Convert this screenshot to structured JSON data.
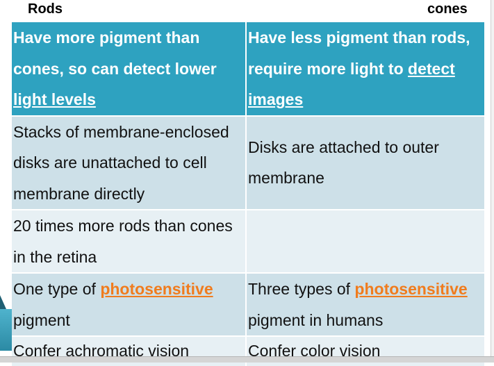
{
  "headers": {
    "left": "Rods",
    "right": "cones"
  },
  "table": {
    "head": {
      "rods": "Have more pigment than cones, so can detect lower",
      "rods_underlined": "light levels",
      "cones": "Have less pigment than rods, require more light to",
      "cones_underlined": "detect images"
    },
    "rows": [
      {
        "rods": "Stacks of membrane-enclosed disks are unattached to cell membrane directly",
        "cones": "Disks are attached to outer membrane"
      },
      {
        "rods": "20 times more rods than cones in the retina",
        "cones": ""
      },
      {
        "rods_prefix": "One type of",
        "rods_link": "photosensitive",
        "rods_suffix": "pigment",
        "cones_prefix": "Three types of",
        "cones_link": "photosensitive",
        "cones_suffix": "pigment in humans"
      },
      {
        "rods": "Confer achromatic vision",
        "cones": "Confer color vision"
      }
    ]
  },
  "colors": {
    "header_bg": "#2ea2c0",
    "row_dark": "#cde0e8",
    "row_light": "#e7f0f4",
    "link": "#f07c1e"
  }
}
